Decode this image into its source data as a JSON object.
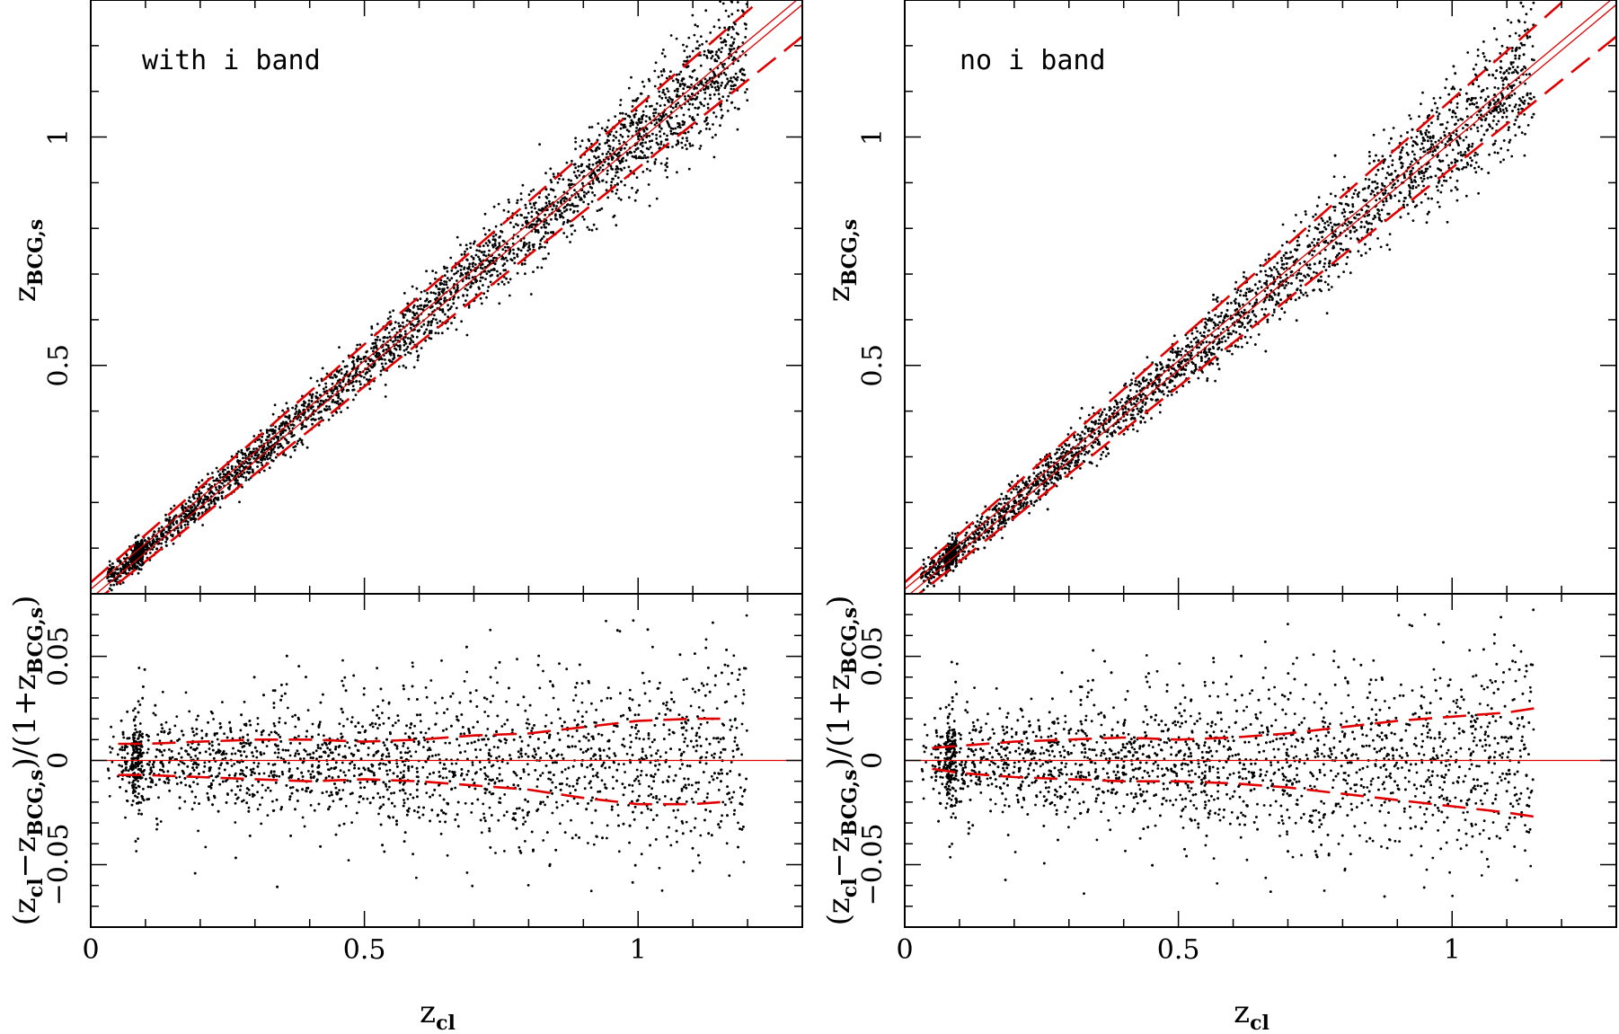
{
  "chart_data": [
    {
      "type": "scatter",
      "title": "with i band",
      "panels": [
        {
          "name": "main",
          "xlabel": "z",
          "xlabel_sub": "cl",
          "ylabel": "z",
          "ylabel_sub": "BCG,s",
          "xlim": [
            0,
            1.3
          ],
          "ylim": [
            0,
            1.3
          ],
          "xticks": [
            0,
            0.5,
            1
          ],
          "yticks": [
            0.5,
            1
          ],
          "xtick_labels": [
            "0",
            "0.5",
            "1"
          ],
          "ytick_labels": [
            "0.5",
            "1"
          ],
          "series": [
            {
              "kind": "points",
              "color": "#000000",
              "description_relation": "z_BCG,s ≈ z_cl",
              "scatter_sigma": 0.02,
              "x_range": [
                0.03,
                1.2
              ]
            },
            {
              "kind": "line",
              "style": "solid",
              "color": "#e00000",
              "x": [
                0,
                1.3
              ],
              "y": [
                0.01,
                1.31
              ]
            },
            {
              "kind": "line",
              "style": "solid",
              "color": "#e00000",
              "x": [
                0,
                1.3
              ],
              "y": [
                -0.01,
                1.29
              ]
            },
            {
              "kind": "line",
              "style": "dashed",
              "color": "#e00000",
              "x": [
                0,
                1.3
              ],
              "y": [
                0.025,
                1.38
              ]
            },
            {
              "kind": "line",
              "style": "dashed",
              "color": "#e00000",
              "x": [
                0,
                1.3
              ],
              "y": [
                -0.025,
                1.22
              ]
            }
          ]
        },
        {
          "name": "residual",
          "xlabel": "z",
          "xlabel_sub": "cl",
          "ylabel": "(z_cl − z_BCG,s)/(1+z_BCG,s)",
          "xlim": [
            0,
            1.3
          ],
          "ylim": [
            -0.08,
            0.08
          ],
          "xticks": [
            0,
            0.5,
            1
          ],
          "yticks": [
            -0.05,
            0,
            0.05
          ],
          "xtick_labels": [
            "0",
            "0.5",
            "1"
          ],
          "ytick_labels": [
            "−0.05",
            "0",
            "0.05"
          ],
          "series": [
            {
              "kind": "points",
              "color": "#000000",
              "scatter_sigma": 0.015,
              "x_range": [
                0.03,
                1.2
              ]
            },
            {
              "kind": "line",
              "style": "solid",
              "color": "#e00000",
              "x": [
                0,
                1.3
              ],
              "y": [
                0,
                0
              ]
            },
            {
              "kind": "line",
              "style": "dashed",
              "color": "#e00000",
              "x": [
                0.05,
                0.1,
                0.2,
                0.3,
                0.4,
                0.5,
                0.6,
                0.7,
                0.8,
                0.9,
                1.0,
                1.1,
                1.15
              ],
              "y": [
                0.008,
                0.008,
                0.009,
                0.01,
                0.01,
                0.009,
                0.01,
                0.012,
                0.013,
                0.016,
                0.019,
                0.02,
                0.02
              ]
            },
            {
              "kind": "line",
              "style": "dashed",
              "color": "#e00000",
              "x": [
                0.05,
                0.1,
                0.2,
                0.3,
                0.4,
                0.5,
                0.6,
                0.7,
                0.8,
                0.9,
                1.0,
                1.1,
                1.15
              ],
              "y": [
                -0.007,
                -0.007,
                -0.008,
                -0.009,
                -0.01,
                -0.009,
                -0.01,
                -0.012,
                -0.014,
                -0.018,
                -0.021,
                -0.021,
                -0.02
              ]
            }
          ]
        }
      ]
    },
    {
      "type": "scatter",
      "title": "no i band",
      "panels": [
        {
          "name": "main",
          "xlabel": "z",
          "xlabel_sub": "cl",
          "ylabel": "z",
          "ylabel_sub": "BCG,s",
          "xlim": [
            0,
            1.3
          ],
          "ylim": [
            0,
            1.3
          ],
          "xticks": [
            0,
            0.5,
            1
          ],
          "yticks": [
            0.5,
            1
          ],
          "xtick_labels": [
            "0",
            "0.5",
            "1"
          ],
          "ytick_labels": [
            "0.5",
            "1"
          ],
          "series": [
            {
              "kind": "points",
              "color": "#000000",
              "scatter_sigma": 0.022,
              "x_range": [
                0.03,
                1.15
              ]
            },
            {
              "kind": "line",
              "style": "solid",
              "color": "#e00000",
              "x": [
                0,
                1.3
              ],
              "y": [
                0.01,
                1.31
              ]
            },
            {
              "kind": "line",
              "style": "solid",
              "color": "#e00000",
              "x": [
                0,
                1.3
              ],
              "y": [
                -0.01,
                1.29
              ]
            },
            {
              "kind": "line",
              "style": "dashed",
              "color": "#e00000",
              "x": [
                0,
                1.3
              ],
              "y": [
                0.025,
                1.4
              ]
            },
            {
              "kind": "line",
              "style": "dashed",
              "color": "#e00000",
              "x": [
                0,
                1.3
              ],
              "y": [
                -0.025,
                1.22
              ]
            }
          ]
        },
        {
          "name": "residual",
          "xlabel": "z",
          "xlabel_sub": "cl",
          "ylabel": "(z_cl − z_BCG,s)/(1+z_BCG,s)",
          "xlim": [
            0,
            1.3
          ],
          "ylim": [
            -0.08,
            0.08
          ],
          "xticks": [
            0,
            0.5,
            1
          ],
          "yticks": [
            -0.05,
            0,
            0.05
          ],
          "xtick_labels": [
            "0",
            "0.5",
            "1"
          ],
          "ytick_labels": [
            "−0.05",
            "0",
            "0.05"
          ],
          "series": [
            {
              "kind": "points",
              "color": "#000000",
              "scatter_sigma": 0.016,
              "x_range": [
                0.03,
                1.15
              ]
            },
            {
              "kind": "line",
              "style": "solid",
              "color": "#e00000",
              "x": [
                0,
                1.3
              ],
              "y": [
                0,
                0
              ]
            },
            {
              "kind": "line",
              "style": "dashed",
              "color": "#e00000",
              "x": [
                0.05,
                0.1,
                0.2,
                0.3,
                0.4,
                0.5,
                0.6,
                0.7,
                0.8,
                0.9,
                1.0,
                1.1,
                1.15
              ],
              "y": [
                0.006,
                0.007,
                0.009,
                0.01,
                0.011,
                0.01,
                0.011,
                0.013,
                0.016,
                0.019,
                0.021,
                0.023,
                0.025
              ]
            },
            {
              "kind": "line",
              "style": "dashed",
              "color": "#e00000",
              "x": [
                0.05,
                0.1,
                0.2,
                0.3,
                0.4,
                0.5,
                0.6,
                0.7,
                0.8,
                0.9,
                1.0,
                1.1,
                1.15
              ],
              "y": [
                -0.004,
                -0.006,
                -0.008,
                -0.009,
                -0.01,
                -0.01,
                -0.011,
                -0.013,
                -0.016,
                -0.019,
                -0.022,
                -0.025,
                -0.027
              ]
            }
          ]
        }
      ]
    }
  ]
}
